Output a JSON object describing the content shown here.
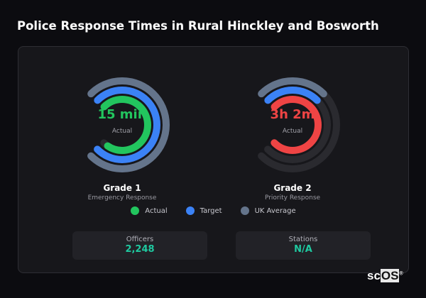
{
  "title": "Police Response Times in Rural Hinckley and Bosworth",
  "gauges": [
    {
      "value": "15 min",
      "sub": "Actual",
      "name": "Grade 1",
      "desc": "Emergency Response",
      "actual_fill": 0.72,
      "target_fill": 0.75,
      "uk_fill": 0.75,
      "actual_color": "#22c55e"
    },
    {
      "value": "3h 2m",
      "sub": "Actual",
      "name": "Grade 2",
      "desc": "Priority Response",
      "actual_fill": 0.75,
      "target_fill": 0.25,
      "uk_fill": 0.25,
      "actual_color": "#ef4444"
    }
  ],
  "legend": [
    {
      "label": "Actual",
      "color": "#22c55e"
    },
    {
      "label": "Target",
      "color": "#3b82f6"
    },
    {
      "label": "UK Average",
      "color": "#64748b"
    }
  ],
  "stats": [
    {
      "label": "Officers",
      "value": "2,248"
    },
    {
      "label": "Stations",
      "value": "N/A"
    }
  ],
  "logo": {
    "text_plain": "sc",
    "text_boxed": "OS",
    "mark": "®"
  }
}
